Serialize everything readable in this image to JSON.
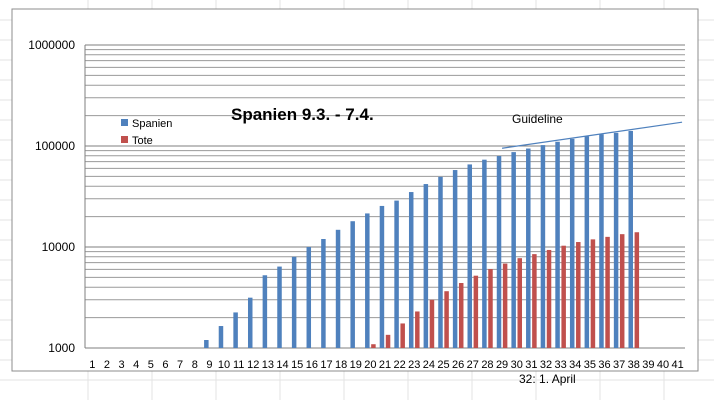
{
  "chart_data": {
    "type": "bar",
    "title": "Spanien 9.3. - 7.4.",
    "y_scale": "log",
    "ylim": [
      1000,
      1000000
    ],
    "y_ticks": [
      1000,
      10000,
      100000,
      1000000
    ],
    "y_tick_labels": [
      "1000",
      "10000",
      "100000",
      "1000000"
    ],
    "grid": true,
    "legend": "top-left",
    "categories": [
      "1",
      "2",
      "3",
      "4",
      "5",
      "6",
      "7",
      "8",
      "9",
      "10",
      "11",
      "12",
      "13",
      "14",
      "15",
      "16",
      "17",
      "18",
      "19",
      "20",
      "21",
      "22",
      "23",
      "24",
      "25",
      "26",
      "27",
      "28",
      "29",
      "30",
      "31",
      "32",
      "33",
      "34",
      "35",
      "36",
      "37",
      "38",
      "39",
      "40",
      "41"
    ],
    "x_annotation": "32: 1. April",
    "series": [
      {
        "name": "Spanien",
        "color": "#4f81bd",
        "values": [
          null,
          null,
          null,
          null,
          null,
          null,
          null,
          null,
          1200,
          1650,
          2250,
          3150,
          5250,
          6400,
          8000,
          10000,
          12000,
          14800,
          18000,
          21500,
          25500,
          28800,
          35000,
          42000,
          49500,
          57800,
          65700,
          73200,
          79600,
          87000,
          94400,
          102100,
          110200,
          117700,
          124700,
          130800,
          135000,
          141000,
          null,
          null,
          null
        ]
      },
      {
        "name": "Tote",
        "color": "#c0504d",
        "values": [
          null,
          null,
          null,
          null,
          null,
          null,
          null,
          null,
          null,
          null,
          null,
          null,
          null,
          null,
          null,
          null,
          null,
          null,
          null,
          1090,
          1350,
          1750,
          2300,
          3000,
          3650,
          4400,
          5200,
          6050,
          6850,
          7750,
          8500,
          9350,
          10300,
          11200,
          11900,
          12600,
          13400,
          14000,
          null,
          null,
          null
        ]
      }
    ],
    "annotation": {
      "label": "Guideline",
      "from": {
        "x": 29,
        "y": 95000
      },
      "to": {
        "x": 41.3,
        "y": 172000
      },
      "color": "#4f81bd"
    }
  }
}
